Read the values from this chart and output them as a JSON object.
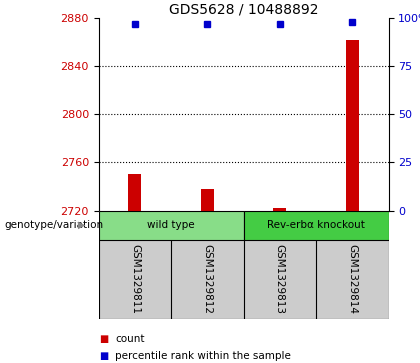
{
  "title": "GDS5628 / 10488892",
  "samples": [
    "GSM1329811",
    "GSM1329812",
    "GSM1329813",
    "GSM1329814"
  ],
  "counts": [
    2750,
    2738,
    2722,
    2862
  ],
  "percentiles": [
    97,
    97,
    97,
    98
  ],
  "ymin": 2720,
  "ymax": 2880,
  "yticks": [
    2720,
    2760,
    2800,
    2840,
    2880
  ],
  "right_yticks": [
    0,
    25,
    50,
    75,
    100
  ],
  "bar_color": "#cc0000",
  "point_color": "#0000cc",
  "bar_width": 0.18,
  "groups": [
    {
      "label": "wild type",
      "samples": [
        0,
        1
      ],
      "color": "#88dd88"
    },
    {
      "label": "Rev-erbα knockout",
      "samples": [
        2,
        3
      ],
      "color": "#44cc44"
    }
  ],
  "genotype_label": "genotype/variation",
  "legend_count_label": "count",
  "legend_percentile_label": "percentile rank within the sample",
  "title_fontsize": 10,
  "axis_label_color_left": "#cc0000",
  "axis_label_color_right": "#0000cc",
  "bg_color": "#ffffff",
  "sample_bg": "#cccccc",
  "grid_linestyle": ":"
}
